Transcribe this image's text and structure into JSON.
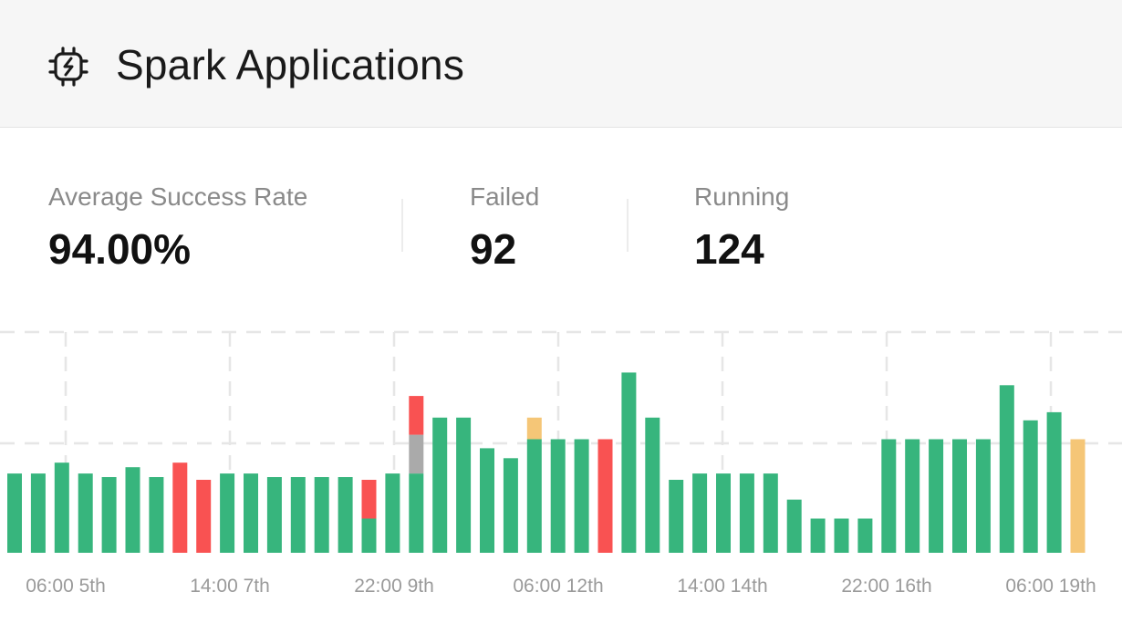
{
  "header": {
    "title": "Spark Applications",
    "icon": "spark-chip-icon"
  },
  "stats": [
    {
      "label": "Average Success Rate",
      "value": "94.00%"
    },
    {
      "label": "Failed",
      "value": "92"
    },
    {
      "label": "Running",
      "value": "124"
    }
  ],
  "chart_data": {
    "type": "bar",
    "stacked": true,
    "grid": true,
    "x_tick_labels": [
      "06:00 5th",
      "14:00 7th",
      "22:00 9th",
      "06:00 12th",
      "14:00 14th",
      "22:00 16th",
      "06:00 19th"
    ],
    "colors": {
      "success": "#37b57d",
      "failed": "#f95252",
      "cancelled": "#aaaaaa",
      "running": "#f5c677"
    },
    "series": [
      {
        "key": "success",
        "values": [
          88,
          88,
          100,
          88,
          84,
          95,
          84,
          0,
          0,
          88,
          88,
          84,
          84,
          84,
          84,
          38,
          88,
          88,
          150,
          150,
          116,
          105,
          126,
          126,
          126,
          0,
          200,
          150,
          81,
          88,
          88,
          88,
          88,
          59,
          38,
          38,
          38,
          126,
          126,
          126,
          126,
          126,
          186,
          147,
          156,
          0
        ]
      },
      {
        "key": "cancelled",
        "values": [
          0,
          0,
          0,
          0,
          0,
          0,
          0,
          0,
          0,
          0,
          0,
          0,
          0,
          0,
          0,
          0,
          0,
          43,
          0,
          0,
          0,
          0,
          0,
          0,
          0,
          0,
          0,
          0,
          0,
          0,
          0,
          0,
          0,
          0,
          0,
          0,
          0,
          0,
          0,
          0,
          0,
          0,
          0,
          0,
          0,
          0
        ]
      },
      {
        "key": "failed",
        "values": [
          0,
          0,
          0,
          0,
          0,
          0,
          0,
          100,
          81,
          0,
          0,
          0,
          0,
          0,
          0,
          43,
          0,
          43,
          0,
          0,
          0,
          0,
          0,
          0,
          0,
          126,
          0,
          0,
          0,
          0,
          0,
          0,
          0,
          0,
          0,
          0,
          0,
          0,
          0,
          0,
          0,
          0,
          0,
          0,
          0,
          0
        ]
      },
      {
        "key": "running",
        "values": [
          0,
          0,
          0,
          0,
          0,
          0,
          0,
          0,
          0,
          0,
          0,
          0,
          0,
          0,
          0,
          0,
          0,
          0,
          0,
          0,
          0,
          0,
          24,
          0,
          0,
          0,
          0,
          0,
          0,
          0,
          0,
          0,
          0,
          0,
          0,
          0,
          0,
          0,
          0,
          0,
          0,
          0,
          0,
          0,
          0,
          126
        ]
      }
    ],
    "ylim": [
      0,
      245
    ]
  }
}
